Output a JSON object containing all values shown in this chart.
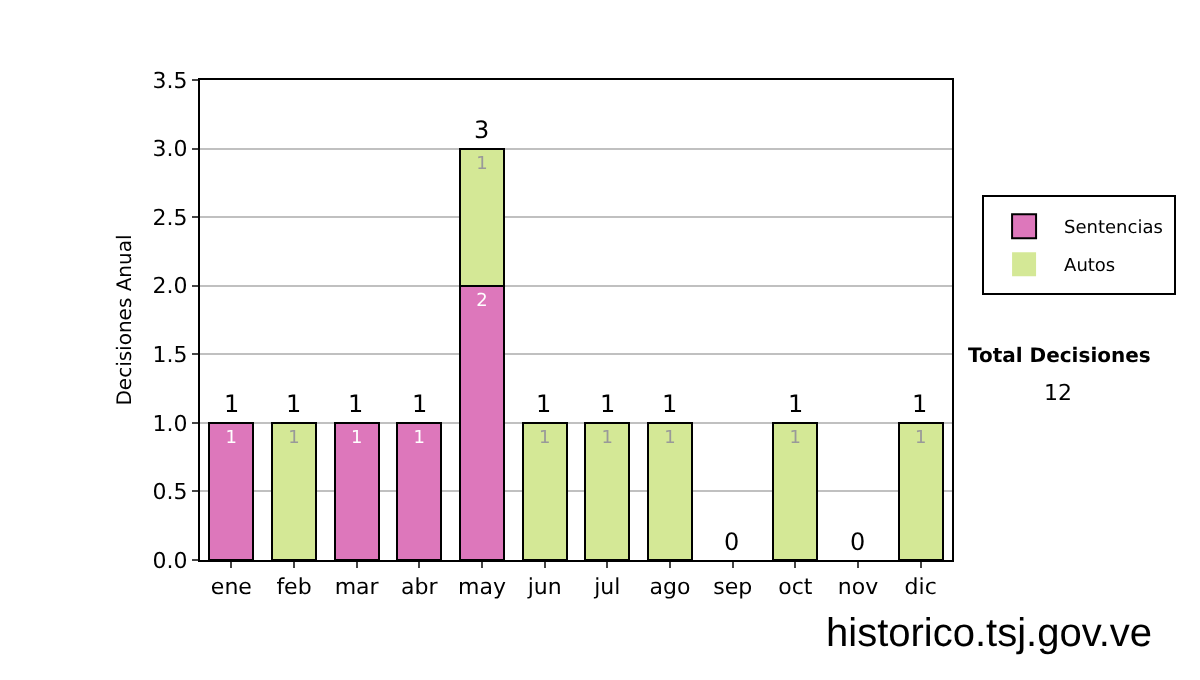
{
  "chart_data": {
    "type": "bar",
    "stacked": true,
    "ylabel": "Decisiones Anual",
    "categories": [
      "ene",
      "feb",
      "mar",
      "abr",
      "may",
      "jun",
      "jul",
      "ago",
      "sep",
      "oct",
      "nov",
      "dic"
    ],
    "series": [
      {
        "name": "Sentencias",
        "color": "#dd77bb",
        "values": [
          1,
          0,
          1,
          1,
          2,
          0,
          0,
          0,
          0,
          0,
          0,
          0
        ],
        "value_labels": [
          "1",
          null,
          "1",
          "1",
          "2",
          null,
          null,
          null,
          null,
          null,
          null,
          null
        ]
      },
      {
        "name": "Autos",
        "color": "#d4e896",
        "values": [
          0,
          1,
          0,
          0,
          1,
          1,
          1,
          1,
          0,
          1,
          0,
          1
        ],
        "value_labels": [
          null,
          "1",
          null,
          null,
          "1",
          "1",
          "1",
          "1",
          null,
          "1",
          null,
          "1"
        ]
      }
    ],
    "totals": [
      "1",
      "1",
      "1",
      "1",
      "3",
      "1",
      "1",
      "1",
      "0",
      "1",
      "0",
      "1"
    ],
    "ylim": [
      0,
      3.5
    ],
    "yticks": [
      {
        "value": 0,
        "label": "0.0"
      },
      {
        "value": 0.5,
        "label": "0.5"
      },
      {
        "value": 1,
        "label": "1.0"
      },
      {
        "value": 1.5,
        "label": "1.5"
      },
      {
        "value": 2,
        "label": "2.0"
      },
      {
        "value": 2.5,
        "label": "2.5"
      },
      {
        "value": 3,
        "label": "3.0"
      },
      {
        "value": 3.5,
        "label": "3.5"
      }
    ],
    "grid": "y",
    "legend": "right",
    "annotations": [
      "Total Decisiones",
      "12",
      "historico.tsj.gov.ve"
    ]
  }
}
